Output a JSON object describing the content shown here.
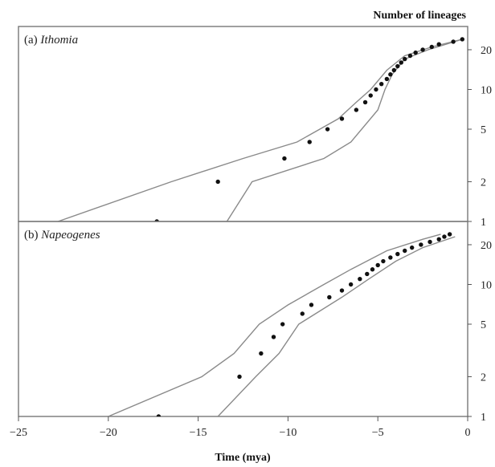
{
  "figure": {
    "y_axis_title": "Number of lineages",
    "x_axis_title": "Time (mya)"
  },
  "colors": {
    "envelope": "#8a8a8a",
    "points": "#111111",
    "axis": "#555555",
    "frame": "#777777"
  },
  "chart_data": [
    {
      "type": "scatter",
      "panel_id": "a",
      "panel_prefix": "(a) ",
      "panel_name": "Ithomia",
      "xlabel": "",
      "ylabel": "",
      "xlim": [
        -25,
        0
      ],
      "ylim": [
        1,
        30
      ],
      "yscale": "log",
      "yticks": [
        1,
        2,
        5,
        10,
        20
      ],
      "grid": false,
      "points": [
        {
          "x": -17.3,
          "y": 1
        },
        {
          "x": -13.9,
          "y": 2
        },
        {
          "x": -10.2,
          "y": 3
        },
        {
          "x": -8.8,
          "y": 4
        },
        {
          "x": -7.8,
          "y": 5
        },
        {
          "x": -7.0,
          "y": 6
        },
        {
          "x": -6.2,
          "y": 7
        },
        {
          "x": -5.7,
          "y": 8
        },
        {
          "x": -5.4,
          "y": 9
        },
        {
          "x": -5.1,
          "y": 10
        },
        {
          "x": -4.8,
          "y": 11
        },
        {
          "x": -4.5,
          "y": 12
        },
        {
          "x": -4.3,
          "y": 13
        },
        {
          "x": -4.1,
          "y": 14
        },
        {
          "x": -3.9,
          "y": 15
        },
        {
          "x": -3.7,
          "y": 16
        },
        {
          "x": -3.5,
          "y": 17
        },
        {
          "x": -3.2,
          "y": 18
        },
        {
          "x": -2.9,
          "y": 19
        },
        {
          "x": -2.5,
          "y": 20
        },
        {
          "x": -2.0,
          "y": 21
        },
        {
          "x": -1.6,
          "y": 22
        },
        {
          "x": -0.8,
          "y": 23
        },
        {
          "x": -0.3,
          "y": 24
        }
      ],
      "upper_envelope": [
        {
          "x": -22.8,
          "y": 1
        },
        {
          "x": -16.5,
          "y": 2
        },
        {
          "x": -12.5,
          "y": 3
        },
        {
          "x": -9.5,
          "y": 4
        },
        {
          "x": -7.2,
          "y": 6
        },
        {
          "x": -6.2,
          "y": 8
        },
        {
          "x": -5.4,
          "y": 10
        },
        {
          "x": -4.5,
          "y": 14
        },
        {
          "x": -3.5,
          "y": 18
        },
        {
          "x": -2.0,
          "y": 21
        },
        {
          "x": -0.3,
          "y": 24
        }
      ],
      "lower_envelope": [
        {
          "x": -13.4,
          "y": 1
        },
        {
          "x": -12.0,
          "y": 2
        },
        {
          "x": -8.0,
          "y": 3
        },
        {
          "x": -6.5,
          "y": 4
        },
        {
          "x": -5.0,
          "y": 7
        },
        {
          "x": -4.6,
          "y": 10
        },
        {
          "x": -4.2,
          "y": 13
        },
        {
          "x": -3.5,
          "y": 17
        },
        {
          "x": -2.2,
          "y": 20
        },
        {
          "x": -0.3,
          "y": 24
        }
      ]
    },
    {
      "type": "scatter",
      "panel_id": "b",
      "panel_prefix": "(b) ",
      "panel_name": "Napeogenes",
      "xlabel": "",
      "ylabel": "",
      "xlim": [
        -25,
        0
      ],
      "ylim": [
        1,
        30
      ],
      "yscale": "log",
      "yticks": [
        1,
        2,
        5,
        10,
        20
      ],
      "grid": false,
      "points": [
        {
          "x": -17.2,
          "y": 1
        },
        {
          "x": -12.7,
          "y": 2
        },
        {
          "x": -11.5,
          "y": 3
        },
        {
          "x": -10.8,
          "y": 4
        },
        {
          "x": -10.3,
          "y": 5
        },
        {
          "x": -9.2,
          "y": 6
        },
        {
          "x": -8.7,
          "y": 7
        },
        {
          "x": -7.7,
          "y": 8
        },
        {
          "x": -7.0,
          "y": 9
        },
        {
          "x": -6.5,
          "y": 10
        },
        {
          "x": -6.0,
          "y": 11
        },
        {
          "x": -5.6,
          "y": 12
        },
        {
          "x": -5.3,
          "y": 13
        },
        {
          "x": -5.0,
          "y": 14
        },
        {
          "x": -4.7,
          "y": 15
        },
        {
          "x": -4.3,
          "y": 16
        },
        {
          "x": -3.9,
          "y": 17
        },
        {
          "x": -3.5,
          "y": 18
        },
        {
          "x": -3.1,
          "y": 19
        },
        {
          "x": -2.6,
          "y": 20
        },
        {
          "x": -2.1,
          "y": 21
        },
        {
          "x": -1.6,
          "y": 22
        },
        {
          "x": -1.3,
          "y": 23
        },
        {
          "x": -1.0,
          "y": 24
        }
      ],
      "upper_envelope": [
        {
          "x": -20.0,
          "y": 1
        },
        {
          "x": -14.8,
          "y": 2
        },
        {
          "x": -13.0,
          "y": 3
        },
        {
          "x": -11.6,
          "y": 5
        },
        {
          "x": -10.0,
          "y": 7
        },
        {
          "x": -8.0,
          "y": 10
        },
        {
          "x": -6.5,
          "y": 13
        },
        {
          "x": -4.5,
          "y": 18
        },
        {
          "x": -2.5,
          "y": 22
        },
        {
          "x": -1.5,
          "y": 24
        }
      ],
      "lower_envelope": [
        {
          "x": -13.9,
          "y": 1
        },
        {
          "x": -11.8,
          "y": 2
        },
        {
          "x": -10.5,
          "y": 3
        },
        {
          "x": -9.4,
          "y": 5
        },
        {
          "x": -7.0,
          "y": 8
        },
        {
          "x": -5.5,
          "y": 11
        },
        {
          "x": -4.0,
          "y": 15
        },
        {
          "x": -2.5,
          "y": 19
        },
        {
          "x": -0.7,
          "y": 23
        }
      ]
    }
  ],
  "x_ticks": [
    -25,
    -20,
    -15,
    -10,
    -5,
    0
  ],
  "x_tick_labels": [
    "−25",
    "−20",
    "−15",
    "−10",
    "−5",
    "0"
  ]
}
